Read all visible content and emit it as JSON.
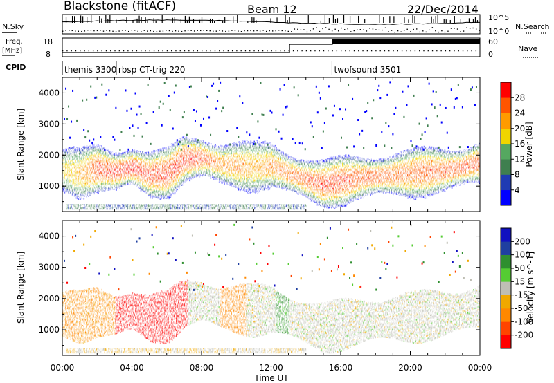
{
  "header": {
    "station": "Blackstone (fitACF)",
    "beam": "Beam 12",
    "date": "22/Dec/2014"
  },
  "panel_labels": {
    "nsky": "N.Sky",
    "nsearch": "N.Search",
    "freq_line1": "Freq.",
    "freq_line2": "[MHz]",
    "nave": "Nave",
    "cpid": "CPID"
  },
  "small_axes": {
    "noise_ticks": [
      "10^5",
      "10^0"
    ],
    "freq_ticks": [
      "18",
      "8"
    ],
    "nave_ticks": [
      "60",
      "0"
    ]
  },
  "cpid_segments": [
    {
      "label": "themis 3300",
      "start_hour": 0.0
    },
    {
      "label": "rbsp CT-trig 220",
      "start_hour": 3.1
    },
    {
      "label": "twofsound 3501",
      "start_hour": 15.5
    }
  ],
  "colors": {
    "power": [
      "#0000ff",
      "#1f3bb3",
      "#3f7f4f",
      "#55a860",
      "#f0d500",
      "#ff9b00",
      "#ff5500",
      "#ff0000"
    ],
    "velocity": [
      "#ff0000",
      "#ff4400",
      "#ff8800",
      "#f0a800",
      "#bebeb4",
      "#55cc33",
      "#2f8f2f",
      "#1f3fa0",
      "#1010c0"
    ]
  },
  "chart_data": [
    {
      "type": "heatmap",
      "title": "",
      "xlabel": "Time UT",
      "ylabel": "Slant Range [km]",
      "xlim": [
        0,
        24
      ],
      "ylim": [
        180,
        4500
      ],
      "x_ticks": [
        "00:00",
        "04:00",
        "08:00",
        "12:00",
        "16:00",
        "20:00",
        "00:00"
      ],
      "y_ticks": [
        1000,
        2000,
        3000,
        4000
      ],
      "colorbar": {
        "label": "Power [dB]",
        "ticks": [
          4,
          8,
          12,
          16,
          20,
          24,
          28
        ],
        "range": [
          0,
          30
        ]
      },
      "echo_band": {
        "hours": [
          0,
          1,
          2,
          3,
          4,
          5,
          6,
          7,
          8,
          9,
          10,
          11,
          12,
          13,
          14,
          15,
          16,
          17,
          18,
          19,
          20,
          21,
          22,
          23,
          24
        ],
        "center_km": [
          1500,
          1400,
          1550,
          1450,
          1600,
          1350,
          1400,
          1850,
          1900,
          1700,
          1650,
          1600,
          1650,
          1400,
          1200,
          1050,
          1150,
          1250,
          1300,
          1350,
          1400,
          1450,
          1500,
          1600,
          1750
        ],
        "peak_power_db": [
          18,
          20,
          26,
          27,
          28,
          26,
          27,
          27,
          26,
          22,
          22,
          20,
          22,
          24,
          25,
          26,
          26,
          25,
          25,
          24,
          24,
          25,
          25,
          26,
          26
        ]
      }
    },
    {
      "type": "heatmap",
      "title": "",
      "xlabel": "Time UT",
      "ylabel": "Slant Range [km]",
      "xlim": [
        0,
        24
      ],
      "ylim": [
        180,
        4500
      ],
      "x_ticks": [
        "00:00",
        "04:00",
        "08:00",
        "12:00",
        "16:00",
        "20:00",
        "00:00"
      ],
      "y_ticks": [
        1000,
        2000,
        3000,
        4000
      ],
      "colorbar": {
        "label": "Velocity [m s^-1]",
        "ticks": [
          200,
          100,
          50,
          15,
          -15,
          -50,
          -100,
          -200
        ]
      },
      "velocity_regions": [
        {
          "start_hour": 0.0,
          "end_hour": 3.0,
          "velocity": -60
        },
        {
          "start_hour": 3.0,
          "end_hour": 7.2,
          "velocity": -220
        },
        {
          "start_hour": 7.2,
          "end_hour": 9.0,
          "velocity": 0
        },
        {
          "start_hour": 9.0,
          "end_hour": 10.5,
          "velocity": -70
        },
        {
          "start_hour": 10.5,
          "end_hour": 12.2,
          "velocity": 0
        },
        {
          "start_hour": 12.2,
          "end_hour": 13.0,
          "velocity": 60
        },
        {
          "start_hour": 13.0,
          "end_hour": 24.0,
          "velocity": 0
        }
      ]
    }
  ]
}
